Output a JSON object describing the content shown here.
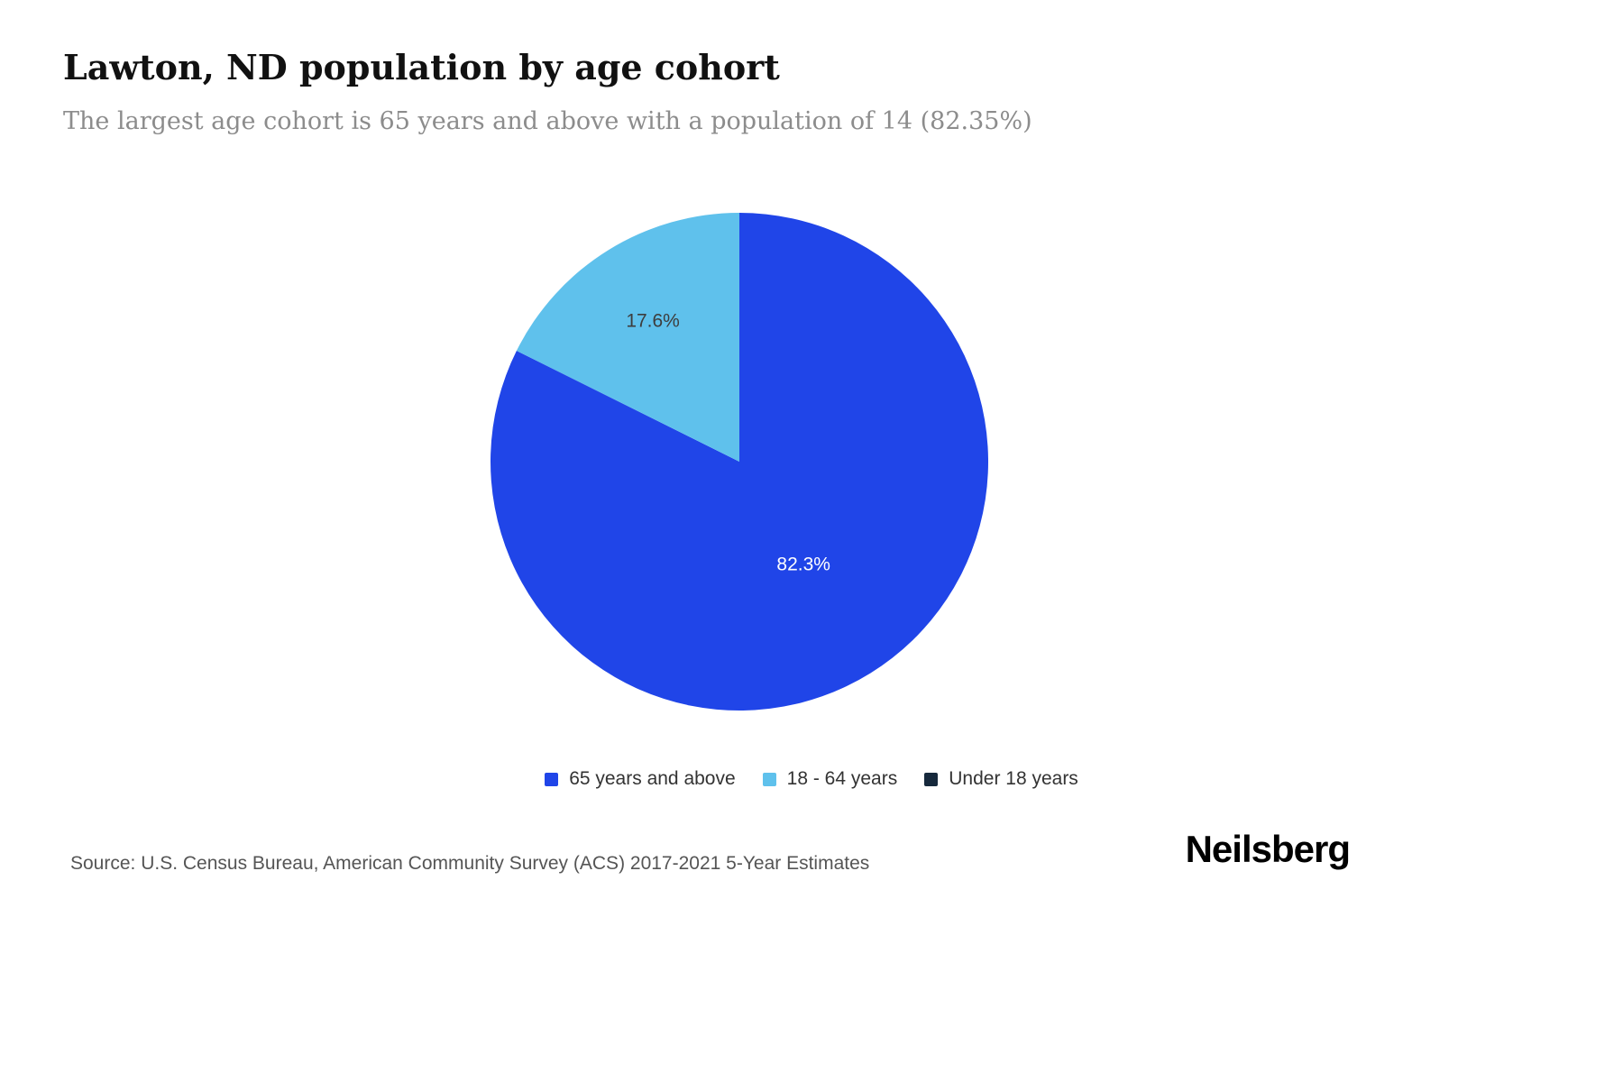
{
  "header": {
    "title": "Lawton, ND population by age cohort",
    "subtitle": "The largest age cohort is 65 years and above with a population of 14 (82.35%)"
  },
  "chart_data": {
    "type": "pie",
    "title": "Lawton, ND population by age cohort",
    "unit": "percent",
    "start_angle_deg": -90,
    "direction": "clockwise",
    "legend_position": "bottom",
    "slices": [
      {
        "label": "65 years and above",
        "value": 82.35,
        "display": "82.3%",
        "color": "#2045e8",
        "label_color": "#ffffff",
        "label_r": 0.49
      },
      {
        "label": "18 - 64 years",
        "value": 17.65,
        "display": "17.6%",
        "color": "#5fc1ec",
        "label_color": "#3d3d3d",
        "label_r": 0.66
      },
      {
        "label": "Under 18 years",
        "value": 0,
        "display": "",
        "color": "#16293c",
        "label_color": "#ffffff",
        "label_r": 0.6
      }
    ]
  },
  "footer": {
    "source": "Source: U.S. Census Bureau, American Community Survey (ACS) 2017-2021 5-Year Estimates",
    "logo": "Neilsberg"
  }
}
